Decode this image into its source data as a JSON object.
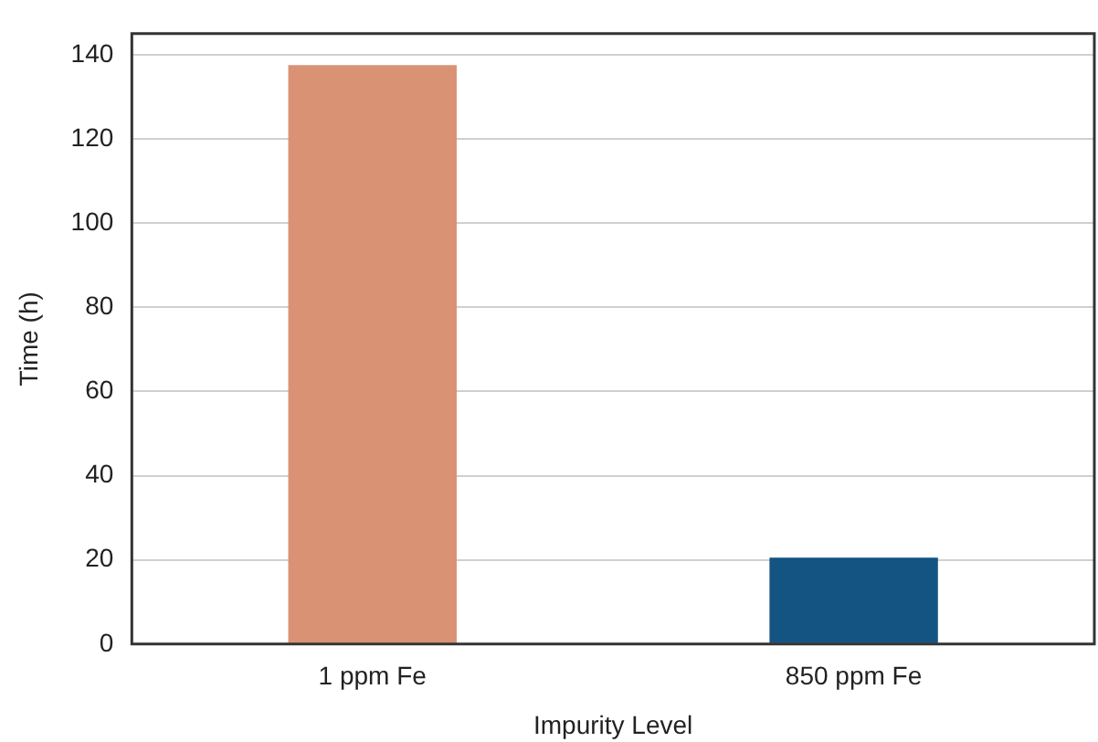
{
  "chart_data": {
    "type": "bar",
    "xlabel": "Impurity Level",
    "ylabel": "Time (h)",
    "categories": [
      "1 ppm Fe",
      "850 ppm Fe"
    ],
    "values": [
      137.5,
      20.5
    ],
    "colors": [
      "#d99274",
      "#135482"
    ],
    "ylim": [
      0,
      145
    ],
    "yticks": [
      0,
      20,
      40,
      60,
      80,
      100,
      120,
      140
    ],
    "grid": "y"
  }
}
